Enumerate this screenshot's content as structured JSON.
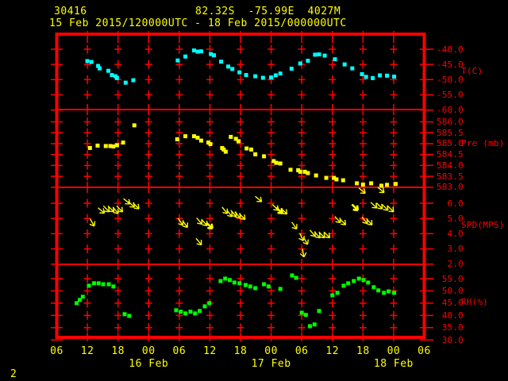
{
  "page": {
    "number": "2"
  },
  "header": {
    "station_id": "30416",
    "position": "82.32S  -75.99E  4027M",
    "time_range": "15 Feb 2015/120000UTC - 18 Feb 2015/000000UTC"
  },
  "colors": {
    "background": "#000000",
    "grid": "#ff0000",
    "axis_text": "#ff0000",
    "time_text": "#ffff00",
    "temperature_series": "#00ffff",
    "pressure_series": "#ffff00",
    "wind_arrows": "#ffff00",
    "humidity_series": "#00ff00"
  },
  "chart_data": {
    "type": "scatter",
    "title": "15 Feb 2015/120000UTC - 18 Feb 2015/000000UTC",
    "x_axis": {
      "unit": "hours UTC, hours measured from 15 Feb 2015 06:00",
      "range_hours": [
        0,
        72
      ],
      "hour_tick_labels": [
        "06",
        "12",
        "18",
        "00",
        "06",
        "12",
        "18",
        "00",
        "06",
        "12",
        "18",
        "00",
        "06"
      ],
      "date_labels": [
        {
          "label": "16 Feb",
          "tick_index": 3
        },
        {
          "label": "17 Feb",
          "tick_index": 7
        },
        {
          "label": "18 Feb",
          "tick_index": 11
        }
      ],
      "grid": true
    },
    "panels": [
      {
        "id": "T",
        "label": "T(C)",
        "ticks": [
          -40.0,
          -45.0,
          -50.0,
          -55.0,
          -60.0
        ],
        "marker": "square",
        "color": "#00ffff",
        "points": [
          [
            6.0,
            -43.9
          ],
          [
            6.8,
            -44.2
          ],
          [
            8.1,
            -45.5
          ],
          [
            8.4,
            -46.3
          ],
          [
            10.1,
            -47.1
          ],
          [
            10.8,
            -48.5
          ],
          [
            11.5,
            -48.9
          ],
          [
            11.8,
            -49.5
          ],
          [
            13.5,
            -51.0
          ],
          [
            15.0,
            -50.2
          ],
          [
            23.7,
            -43.7
          ],
          [
            25.2,
            -42.4
          ],
          [
            26.9,
            -40.4
          ],
          [
            27.6,
            -40.8
          ],
          [
            28.3,
            -40.7
          ],
          [
            30.2,
            -41.6
          ],
          [
            30.8,
            -42.0
          ],
          [
            32.2,
            -44.1
          ],
          [
            33.6,
            -45.7
          ],
          [
            34.4,
            -46.5
          ],
          [
            35.8,
            -47.6
          ],
          [
            37.1,
            -48.5
          ],
          [
            38.9,
            -48.9
          ],
          [
            40.4,
            -49.4
          ],
          [
            42.0,
            -49.3
          ],
          [
            42.9,
            -48.6
          ],
          [
            43.8,
            -48.0
          ],
          [
            46.0,
            -46.4
          ],
          [
            47.7,
            -44.7
          ],
          [
            49.2,
            -43.8
          ],
          [
            50.6,
            -41.8
          ],
          [
            51.4,
            -41.7
          ],
          [
            52.5,
            -42.1
          ],
          [
            54.5,
            -43.3
          ],
          [
            56.4,
            -45.0
          ],
          [
            57.9,
            -46.3
          ],
          [
            59.8,
            -48.2
          ],
          [
            60.6,
            -49.1
          ],
          [
            61.9,
            -49.5
          ],
          [
            63.3,
            -48.6
          ],
          [
            64.7,
            -48.7
          ],
          [
            66.1,
            -49.0
          ]
        ]
      },
      {
        "id": "Pre",
        "label": "Pre (mb)",
        "ticks": [
          586.0,
          585.5,
          585.0,
          584.5,
          584.0,
          583.5,
          583.0
        ],
        "marker": "square",
        "color": "#ffff00",
        "points": [
          [
            6.5,
            584.8
          ],
          [
            8.0,
            584.91
          ],
          [
            9.6,
            584.89
          ],
          [
            10.5,
            584.89
          ],
          [
            11.1,
            584.87
          ],
          [
            11.8,
            584.93
          ],
          [
            13.0,
            585.05
          ],
          [
            15.2,
            585.84
          ],
          [
            23.6,
            585.2
          ],
          [
            25.2,
            585.34
          ],
          [
            26.9,
            585.34
          ],
          [
            27.6,
            585.27
          ],
          [
            28.3,
            585.14
          ],
          [
            29.7,
            585.05
          ],
          [
            30.1,
            584.98
          ],
          [
            32.4,
            584.8
          ],
          [
            32.7,
            584.73
          ],
          [
            33.1,
            584.63
          ],
          [
            34.1,
            585.31
          ],
          [
            35.1,
            585.22
          ],
          [
            35.6,
            585.11
          ],
          [
            37.2,
            584.78
          ],
          [
            38.1,
            584.73
          ],
          [
            38.9,
            584.51
          ],
          [
            40.6,
            584.42
          ],
          [
            42.5,
            584.2
          ],
          [
            43.0,
            584.12
          ],
          [
            43.8,
            584.09
          ],
          [
            45.8,
            583.8
          ],
          [
            47.3,
            583.78
          ],
          [
            47.7,
            583.71
          ],
          [
            48.6,
            583.71
          ],
          [
            49.2,
            583.65
          ],
          [
            50.8,
            583.54
          ],
          [
            52.8,
            583.43
          ],
          [
            54.3,
            583.43
          ],
          [
            54.8,
            583.36
          ],
          [
            56.1,
            583.32
          ],
          [
            58.8,
            583.18
          ],
          [
            60.0,
            583.12
          ],
          [
            61.6,
            583.18
          ],
          [
            63.6,
            583.07
          ],
          [
            64.7,
            583.11
          ],
          [
            66.4,
            583.15
          ]
        ]
      },
      {
        "id": "SPD",
        "label": "SPD(MPS)",
        "ticks": [
          6.0,
          5.0,
          4.0,
          3.0,
          2.0
        ],
        "marker": "arrow",
        "color": "#ffff00",
        "arrows": [
          [
            7.0,
            4.7,
            60,
            0
          ],
          [
            8.8,
            5.5,
            40,
            0
          ],
          [
            9.8,
            5.6,
            45,
            0
          ],
          [
            10.7,
            5.6,
            45,
            0
          ],
          [
            11.6,
            5.5,
            50,
            0
          ],
          [
            12.4,
            5.6,
            45,
            0
          ],
          [
            13.8,
            6.1,
            40,
            0
          ],
          [
            14.7,
            5.9,
            42,
            0
          ],
          [
            15.6,
            5.8,
            45,
            0
          ],
          [
            24.3,
            4.75,
            55,
            0
          ],
          [
            25.2,
            4.6,
            55,
            0
          ],
          [
            27.9,
            3.45,
            50,
            0
          ],
          [
            28.0,
            4.8,
            50,
            0
          ],
          [
            29.0,
            4.7,
            48,
            0
          ],
          [
            30.0,
            4.5,
            45,
            1
          ],
          [
            33.0,
            5.5,
            50,
            0
          ],
          [
            33.9,
            5.3,
            52,
            0
          ],
          [
            34.7,
            5.3,
            50,
            0
          ],
          [
            35.5,
            5.2,
            48,
            0
          ],
          [
            36.4,
            5.1,
            45,
            0
          ],
          [
            39.6,
            6.25,
            40,
            0
          ],
          [
            42.9,
            5.7,
            45,
            0
          ],
          [
            43.7,
            5.5,
            42,
            1
          ],
          [
            44.6,
            5.45,
            45,
            0
          ],
          [
            46.6,
            4.5,
            55,
            0
          ],
          [
            48.0,
            3.75,
            65,
            0
          ],
          [
            48.3,
            2.7,
            80,
            0
          ],
          [
            48.8,
            3.5,
            60,
            0
          ],
          [
            50.2,
            4.0,
            50,
            0
          ],
          [
            51.1,
            3.9,
            48,
            0
          ],
          [
            52.0,
            3.9,
            45,
            0
          ],
          [
            53.0,
            3.9,
            45,
            0
          ],
          [
            55.1,
            4.9,
            48,
            0
          ],
          [
            56.1,
            4.75,
            45,
            0
          ],
          [
            58.5,
            5.7,
            45,
            1
          ],
          [
            59.9,
            6.8,
            40,
            0
          ],
          [
            60.4,
            4.85,
            50,
            0
          ],
          [
            61.3,
            4.75,
            48,
            0
          ],
          [
            62.2,
            5.85,
            42,
            0
          ],
          [
            63.3,
            5.8,
            45,
            0
          ],
          [
            63.6,
            6.85,
            40,
            0
          ],
          [
            64.4,
            5.7,
            45,
            0
          ],
          [
            65.5,
            5.6,
            45,
            0
          ]
        ]
      },
      {
        "id": "RH",
        "label": "RH(%)",
        "ticks": [
          55.0,
          50.0,
          45.0,
          40.0,
          35.0,
          30.0
        ],
        "marker": "square",
        "color": "#00ff00",
        "points": [
          [
            3.9,
            45.0
          ],
          [
            4.5,
            46.3
          ],
          [
            5.1,
            47.6
          ],
          [
            6.3,
            52.1
          ],
          [
            7.3,
            53.1
          ],
          [
            8.2,
            53.1
          ],
          [
            9.1,
            52.7
          ],
          [
            10.2,
            52.7
          ],
          [
            11.1,
            51.8
          ],
          [
            13.3,
            40.5
          ],
          [
            14.2,
            39.8
          ],
          [
            23.4,
            42.1
          ],
          [
            24.3,
            41.5
          ],
          [
            25.2,
            40.8
          ],
          [
            26.2,
            41.5
          ],
          [
            27.1,
            40.8
          ],
          [
            28.0,
            41.8
          ],
          [
            29.0,
            43.7
          ],
          [
            29.9,
            45.0
          ],
          [
            32.1,
            54.0
          ],
          [
            33.0,
            55.0
          ],
          [
            33.9,
            54.4
          ],
          [
            34.8,
            53.4
          ],
          [
            35.8,
            53.1
          ],
          [
            37.0,
            52.4
          ],
          [
            37.9,
            51.8
          ],
          [
            38.9,
            51.1
          ],
          [
            40.6,
            52.7
          ],
          [
            41.5,
            51.8
          ],
          [
            43.8,
            50.8
          ],
          [
            46.1,
            56.3
          ],
          [
            46.9,
            55.3
          ],
          [
            48.0,
            41.1
          ],
          [
            48.8,
            40.2
          ],
          [
            49.6,
            35.6
          ],
          [
            50.5,
            36.3
          ],
          [
            51.4,
            41.8
          ],
          [
            54.0,
            48.2
          ],
          [
            55.0,
            49.2
          ],
          [
            56.2,
            52.1
          ],
          [
            57.1,
            53.1
          ],
          [
            58.2,
            54.0
          ],
          [
            59.2,
            55.0
          ],
          [
            60.1,
            54.4
          ],
          [
            61.0,
            53.4
          ],
          [
            62.1,
            51.5
          ],
          [
            63.0,
            50.2
          ],
          [
            64.1,
            49.2
          ],
          [
            65.0,
            49.8
          ],
          [
            66.1,
            49.2
          ]
        ]
      }
    ]
  }
}
